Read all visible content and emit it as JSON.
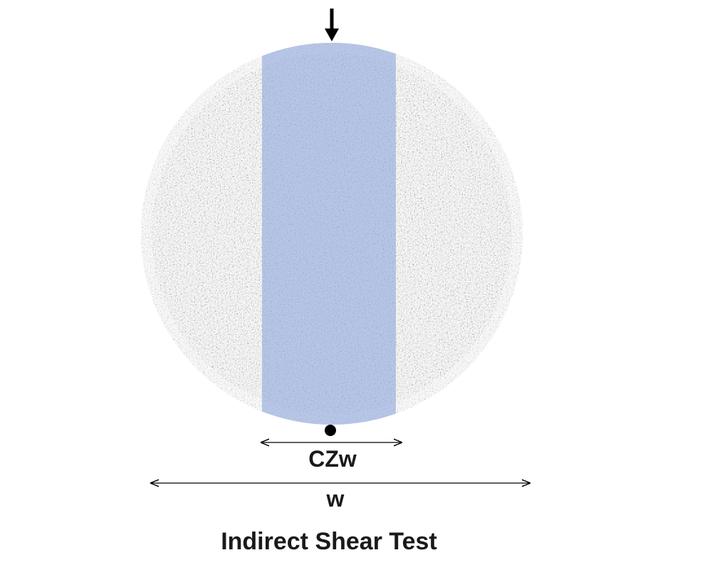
{
  "labels": {
    "contact_zone_width": "CZw",
    "width": "w",
    "caption": "Indirect Shear Test"
  },
  "colors": {
    "specimen_base": "#dcdcdc",
    "contact_zone_tint": "#8fa8dc",
    "arrow": "#000000",
    "dimension_line": "#000000",
    "text": "#1a1a1a"
  }
}
